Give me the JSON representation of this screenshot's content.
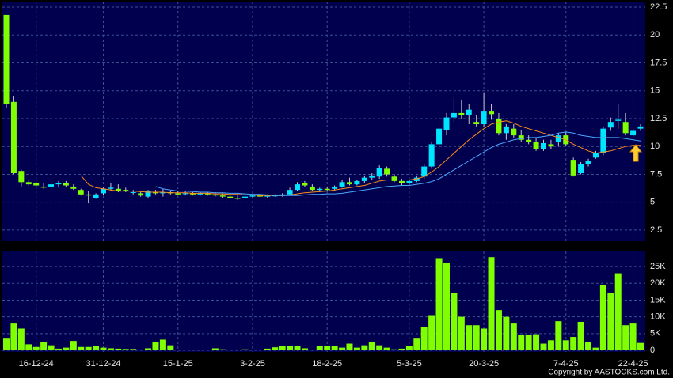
{
  "chart_data": [
    {
      "type": "candlestick",
      "open": [
        21.8,
        14.0,
        7.8,
        6.8,
        6.7,
        6.4,
        6.4,
        6.6,
        6.7,
        6.4,
        6.1,
        5.7,
        5.4,
        5.8,
        6.2,
        6.2,
        6.1,
        5.9,
        5.8,
        5.5,
        5.9,
        5.8,
        5.9,
        5.8,
        5.8,
        5.8,
        5.7,
        5.8,
        5.7,
        5.6,
        5.5,
        5.4,
        5.4,
        5.5,
        5.6,
        5.5,
        5.6,
        5.6,
        5.7,
        6.1,
        6.7,
        6.4,
        6.1,
        6.2,
        6.2,
        6.4,
        6.8,
        6.6,
        6.9,
        7.2,
        7.3,
        8.0,
        7.3,
        6.9,
        6.7,
        6.9,
        7.3,
        8.2,
        10.2,
        11.5,
        12.6,
        13.0,
        12.8,
        12.2,
        12.0,
        13.2,
        12.5,
        11.2,
        11.6,
        11.0,
        10.6,
        10.4,
        9.8,
        10.2,
        10.4,
        11.0,
        8.8,
        7.6,
        8.4,
        9.0,
        9.4,
        11.7,
        12.3,
        12.2,
        11.0,
        11.6
      ],
      "high": [
        21.8,
        14.5,
        7.9,
        7.0,
        6.8,
        6.7,
        6.9,
        6.9,
        6.9,
        6.6,
        6.2,
        6.0,
        5.8,
        6.3,
        6.7,
        6.6,
        6.3,
        6.1,
        6.0,
        6.1,
        6.1,
        6.2,
        6.0,
        6.0,
        6.0,
        5.9,
        5.9,
        5.9,
        5.9,
        5.8,
        5.7,
        5.6,
        5.6,
        5.7,
        5.7,
        5.7,
        5.7,
        5.8,
        6.3,
        6.8,
        6.9,
        6.6,
        6.3,
        6.4,
        6.5,
        7.0,
        7.2,
        7.0,
        7.4,
        7.6,
        8.3,
        8.2,
        7.5,
        7.1,
        7.0,
        7.4,
        8.4,
        10.4,
        11.7,
        13.0,
        14.4,
        14.2,
        13.8,
        12.8,
        14.8,
        13.8,
        13.0,
        12.0,
        12.0,
        11.5,
        11.0,
        10.8,
        10.6,
        10.6,
        11.2,
        11.3,
        9.0,
        8.6,
        8.9,
        9.6,
        11.8,
        12.6,
        13.8,
        13.0,
        11.6,
        12.0
      ],
      "low": [
        13.5,
        7.5,
        6.4,
        6.5,
        6.4,
        6.2,
        6.2,
        6.4,
        6.4,
        6.1,
        5.6,
        4.9,
        5.3,
        5.6,
        6.0,
        5.9,
        5.9,
        5.7,
        5.5,
        5.4,
        5.7,
        5.5,
        5.7,
        5.6,
        5.6,
        5.6,
        5.6,
        5.6,
        5.5,
        5.4,
        5.3,
        5.2,
        5.3,
        5.4,
        5.4,
        5.4,
        5.5,
        5.5,
        5.6,
        6.0,
        6.4,
        6.0,
        5.9,
        6.0,
        6.0,
        6.3,
        6.5,
        6.5,
        6.7,
        7.0,
        7.1,
        7.3,
        6.8,
        6.5,
        6.5,
        6.8,
        7.1,
        8.0,
        9.8,
        11.0,
        12.2,
        12.5,
        12.0,
        11.8,
        11.8,
        12.4,
        11.0,
        10.6,
        10.8,
        10.4,
        10.2,
        9.6,
        9.6,
        9.8,
        10.0,
        10.0,
        7.3,
        7.5,
        8.2,
        8.9,
        9.2,
        11.4,
        11.6,
        11.0,
        10.8,
        11.4
      ],
      "close": [
        13.8,
        7.6,
        6.8,
        6.6,
        6.5,
        6.3,
        6.6,
        6.7,
        6.5,
        6.2,
        5.7,
        5.6,
        5.7,
        6.2,
        6.3,
        6.0,
        6.0,
        5.9,
        5.6,
        6.0,
        5.8,
        5.9,
        5.8,
        5.7,
        5.8,
        5.7,
        5.8,
        5.7,
        5.6,
        5.5,
        5.4,
        5.3,
        5.5,
        5.6,
        5.5,
        5.6,
        5.6,
        5.7,
        6.1,
        6.6,
        6.5,
        6.1,
        6.2,
        6.1,
        6.4,
        6.8,
        6.6,
        6.9,
        7.2,
        7.4,
        8.1,
        7.5,
        6.9,
        6.7,
        6.9,
        7.2,
        8.2,
        10.2,
        11.6,
        12.6,
        13.0,
        12.8,
        13.3,
        12.0,
        13.2,
        12.9,
        11.2,
        11.8,
        11.0,
        10.6,
        10.4,
        9.8,
        10.3,
        10.0,
        11.0,
        10.2,
        7.4,
        8.4,
        8.7,
        9.4,
        11.6,
        12.2,
        12.4,
        11.2,
        11.4,
        11.8
      ],
      "up_color": "#00e5ff",
      "down_color": "#7fff00",
      "series": [
        {
          "color": "#ff8c1a",
          "values": [
            null,
            null,
            null,
            null,
            null,
            null,
            null,
            null,
            null,
            null,
            7.4,
            6.6,
            6.3,
            6.2,
            6.1,
            6.0,
            6.0,
            6.0,
            5.95,
            5.9,
            5.9,
            5.9,
            5.85,
            5.85,
            5.85,
            5.8,
            5.8,
            5.8,
            5.75,
            5.75,
            5.7,
            5.7,
            5.65,
            5.65,
            5.6,
            5.6,
            5.6,
            5.6,
            5.65,
            5.75,
            5.85,
            5.9,
            5.95,
            6.0,
            6.1,
            6.2,
            6.3,
            6.4,
            6.5,
            6.7,
            6.9,
            7.0,
            7.0,
            7.0,
            7.0,
            7.1,
            7.3,
            7.7,
            8.2,
            8.8,
            9.4,
            10.0,
            10.6,
            11.1,
            11.6,
            12.0,
            12.2,
            12.3,
            12.1,
            11.8,
            11.6,
            11.4,
            11.2,
            11.0,
            10.8,
            10.6,
            10.2,
            9.9,
            9.6,
            9.4,
            9.5,
            9.6,
            9.8,
            10.0,
            10.1,
            10.1
          ]
        },
        {
          "color": "#4aa8ff",
          "values": [
            null,
            null,
            null,
            null,
            null,
            null,
            null,
            null,
            null,
            null,
            null,
            null,
            null,
            null,
            null,
            null,
            null,
            null,
            null,
            null,
            6.4,
            6.2,
            6.1,
            6.0,
            6.0,
            5.95,
            5.9,
            5.9,
            5.85,
            5.85,
            5.8,
            5.8,
            5.75,
            5.7,
            5.7,
            5.65,
            5.6,
            5.6,
            5.6,
            5.6,
            5.65,
            5.7,
            5.7,
            5.75,
            5.75,
            5.8,
            5.9,
            6.0,
            6.1,
            6.2,
            6.3,
            6.4,
            6.45,
            6.5,
            6.5,
            6.6,
            6.7,
            6.85,
            7.1,
            7.5,
            7.9,
            8.3,
            8.7,
            9.1,
            9.5,
            9.9,
            10.2,
            10.4,
            10.6,
            10.7,
            10.8,
            10.8,
            10.9,
            11.0,
            11.2,
            11.3,
            11.2,
            11.0,
            10.9,
            10.8,
            10.8,
            10.8,
            10.8,
            10.7,
            10.6,
            10.5
          ]
        }
      ],
      "ylim": [
        1.5,
        23
      ],
      "yticks": [
        2.5,
        5,
        7.5,
        10,
        12.5,
        15,
        17.5,
        20,
        22.5
      ],
      "grid": true
    },
    {
      "type": "bar",
      "categories": [
        null,
        null,
        null,
        null,
        "16-12-24",
        null,
        null,
        null,
        null,
        null,
        null,
        null,
        null,
        "31-12-24",
        null,
        null,
        null,
        null,
        null,
        null,
        null,
        null,
        null,
        "15-1-25",
        null,
        null,
        null,
        null,
        null,
        null,
        null,
        null,
        null,
        "3-2-25",
        null,
        null,
        null,
        null,
        null,
        null,
        null,
        null,
        null,
        "18-2-25",
        null,
        null,
        null,
        null,
        null,
        null,
        null,
        null,
        null,
        null,
        "5-3-25",
        null,
        null,
        null,
        null,
        null,
        null,
        null,
        null,
        null,
        "20-3-25",
        null,
        null,
        null,
        null,
        null,
        null,
        null,
        null,
        null,
        null,
        "7-4-25",
        null,
        null,
        null,
        null,
        null,
        null,
        null,
        null,
        "22-4-25",
        null
      ],
      "values": [
        3500,
        8000,
        6500,
        1800,
        1000,
        2500,
        1500,
        500,
        800,
        2800,
        1000,
        1000,
        1200,
        800,
        600,
        500,
        400,
        400,
        200,
        600,
        2500,
        3200,
        1500,
        200,
        100,
        100,
        100,
        100,
        600,
        300,
        200,
        100,
        300,
        200,
        100,
        500,
        900,
        1200,
        1200,
        1200,
        600,
        200,
        1200,
        1200,
        1200,
        800,
        2000,
        800,
        1500,
        2500,
        1500,
        800,
        300,
        500,
        1200,
        3500,
        7000,
        10500,
        27500,
        26000,
        17000,
        10000,
        7500,
        7500,
        6500,
        27800,
        12000,
        10000,
        8000,
        4500,
        4500,
        4800,
        2000,
        3000,
        8700,
        3000,
        4000,
        8500,
        2500,
        800,
        19500,
        17000,
        23000,
        7500,
        8000,
        2200
      ],
      "color": "#7fff00",
      "ylim": [
        0,
        29500
      ],
      "yticks": [
        0,
        {
          "value": 5000,
          "label": "5K"
        },
        {
          "value": 10000,
          "label": "10K"
        },
        {
          "value": 15000,
          "label": "15K"
        },
        {
          "value": 20000,
          "label": "20K"
        },
        {
          "value": 25000,
          "label": "25K"
        }
      ],
      "grid": true
    }
  ],
  "footer": "Copyright by AASTOCKS.com Ltd."
}
